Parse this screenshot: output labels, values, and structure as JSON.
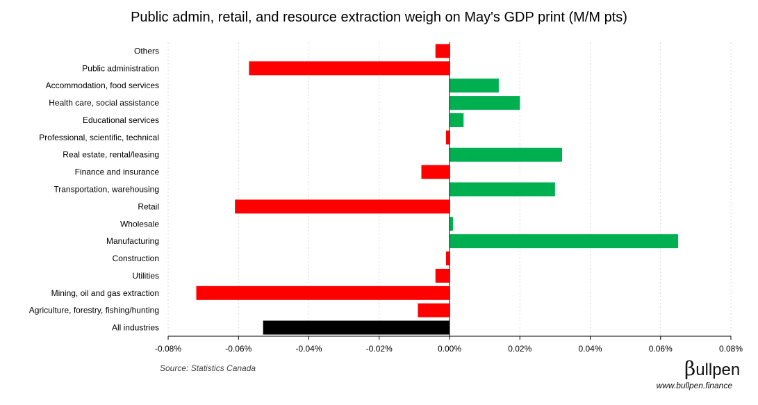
{
  "chart_data": {
    "type": "bar",
    "orientation": "horizontal",
    "title": "Public admin, retail, and resource extraction weigh on May's GDP print (M/M pts)",
    "categories": [
      "Others",
      "Public administration",
      "Accommodation, food services",
      "Health care, social assistance",
      "Educational services",
      "Professional, scientific, technical",
      "Real estate, rental/leasing",
      "Finance and insurance",
      "Transportation, warehousing",
      "Retail",
      "Wholesale",
      "Manufacturing",
      "Construction",
      "Utilities",
      "Mining, oil and gas extraction",
      "Agriculture, forestry, fishing/hunting",
      "All industries"
    ],
    "values": [
      -0.004,
      -0.057,
      0.014,
      0.02,
      0.004,
      -0.001,
      0.032,
      -0.008,
      0.03,
      -0.061,
      0.001,
      0.065,
      -0.001,
      -0.004,
      -0.072,
      -0.009,
      -0.053
    ],
    "unit": "%",
    "xlim": [
      -0.08,
      0.08
    ],
    "xticks": [
      -0.08,
      -0.06,
      -0.04,
      -0.02,
      0.0,
      0.02,
      0.04,
      0.06,
      0.08
    ],
    "xtick_labels": [
      "-0.08%",
      "-0.06%",
      "-0.04%",
      "-0.02%",
      "0.00%",
      "0.02%",
      "0.04%",
      "0.06%",
      "0.08%"
    ],
    "grid": "vertical dashed",
    "legend": "none",
    "colors": {
      "positive": "#00B050",
      "negative": "#FF0000",
      "total": "#000000",
      "gridline": "#D9D9D9",
      "axis": "#000000"
    }
  },
  "footer": {
    "source": "Source: Statistics Canada",
    "brand_beta": "β",
    "brand_name": "ullpen",
    "url": "www.bullpen.finance"
  }
}
